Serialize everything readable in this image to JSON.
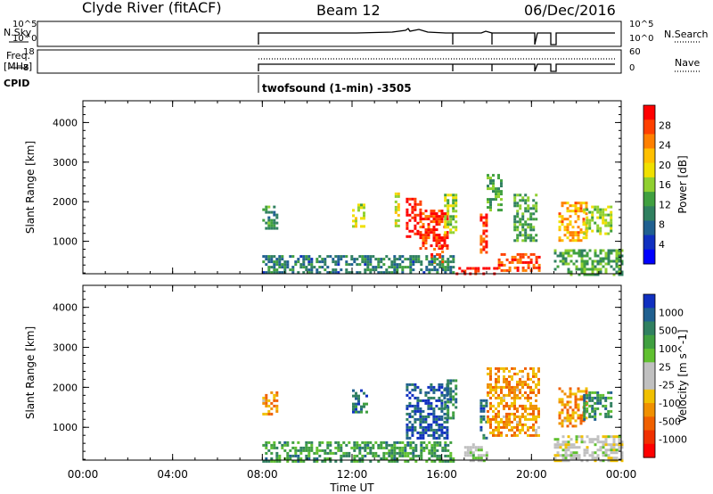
{
  "header": {
    "station": "Clyde River (fitACF)",
    "beam": "Beam 12",
    "date": "06/Dec/2016"
  },
  "top_panels": {
    "left_labels": {
      "nsky": "N.Sky",
      "freq": "Freq.",
      "freq_unit": "[MHz]",
      "cpid": "CPID"
    },
    "right_labels": {
      "nsearch": "N.Search",
      "nave": "Nave"
    },
    "nsky_ticks": [
      "10^5",
      "10^0"
    ],
    "nsearch_ticks": [
      "10^5",
      "10^0"
    ],
    "freq_ticks": [
      "18",
      "8"
    ],
    "nave_ticks": [
      "60",
      "0"
    ],
    "cpid_text": "twofsound (1-min) -3505"
  },
  "chart_data": [
    {
      "type": "heatmap",
      "title": "",
      "xlabel": "Time UT",
      "ylabel": "Slant Range [km]",
      "x_ticks": [
        "00:00",
        "04:00",
        "08:00",
        "12:00",
        "16:00",
        "20:00",
        "00:00"
      ],
      "x_range_hours": [
        0,
        24
      ],
      "y_ticks": [
        1000,
        2000,
        3000,
        4000
      ],
      "y_range_km": [
        180,
        4550
      ],
      "colorbar_label": "Power [dB]",
      "colorbar_ticks": [
        "28",
        "24",
        "20",
        "16",
        "12",
        "8",
        "4"
      ],
      "colorbar_colors": [
        "#ff0000",
        "#ff4000",
        "#ff8000",
        "#ffc000",
        "#f0e000",
        "#90d030",
        "#40a040",
        "#308060",
        "#206090",
        "#1030c0",
        "#0000ff"
      ],
      "regions": [
        {
          "t": [
            8.0,
            8.6
          ],
          "r": [
            1300,
            1900
          ],
          "v": 0.35
        },
        {
          "t": [
            12.0,
            12.5
          ],
          "r": [
            1350,
            1950
          ],
          "v": 0.55
        },
        {
          "t": [
            13.9,
            14.1
          ],
          "r": [
            1400,
            2300
          ],
          "v": 0.6
        },
        {
          "t": [
            14.4,
            15.1
          ],
          "r": [
            1100,
            2100
          ],
          "v": 0.95
        },
        {
          "t": [
            15.0,
            16.2
          ],
          "r": [
            800,
            1800
          ],
          "v": 0.9
        },
        {
          "t": [
            15.5,
            16.0
          ],
          "r": [
            450,
            900
          ],
          "v": 0.85
        },
        {
          "t": [
            16.1,
            16.6
          ],
          "r": [
            1200,
            2200
          ],
          "v": 0.5
        },
        {
          "t": [
            17.7,
            18.0
          ],
          "r": [
            700,
            1700
          ],
          "v": 0.9
        },
        {
          "t": [
            18.0,
            18.7
          ],
          "r": [
            1800,
            2700
          ],
          "v": 0.4
        },
        {
          "t": [
            18.5,
            20.3
          ],
          "r": [
            250,
            700
          ],
          "v": 0.85
        },
        {
          "t": [
            19.2,
            20.2
          ],
          "r": [
            1000,
            2200
          ],
          "v": 0.4
        },
        {
          "t": [
            16.5,
            18.5
          ],
          "r": [
            180,
            350
          ],
          "v": 0.95
        },
        {
          "t": [
            8.0,
            16.5
          ],
          "r": [
            180,
            650
          ],
          "v": 0.3
        },
        {
          "t": [
            21.2,
            22.5
          ],
          "r": [
            1000,
            2000
          ],
          "v": 0.7
        },
        {
          "t": [
            22.3,
            23.5
          ],
          "r": [
            1200,
            1900
          ],
          "v": 0.5
        },
        {
          "t": [
            21.0,
            24.0
          ],
          "r": [
            180,
            800
          ],
          "v": 0.4
        }
      ]
    },
    {
      "type": "heatmap",
      "title": "",
      "xlabel": "Time UT",
      "ylabel": "Slant Range [km]",
      "x_ticks": [
        "00:00",
        "04:00",
        "08:00",
        "12:00",
        "16:00",
        "20:00",
        "00:00"
      ],
      "x_range_hours": [
        0,
        24
      ],
      "y_ticks": [
        1000,
        2000,
        3000,
        4000
      ],
      "y_range_km": [
        180,
        4550
      ],
      "colorbar_label": "Velocity [m s^-1]",
      "colorbar_ticks": [
        "1000",
        "500",
        "100",
        "25",
        "-25",
        "-100",
        "-500",
        "-1000"
      ],
      "colorbar_colors": [
        "#1030c0",
        "#206090",
        "#308060",
        "#40a040",
        "#60c030",
        "#c0c0c0",
        "#c0c0c0",
        "#f0c000",
        "#f09000",
        "#f06000",
        "#f03000",
        "#ff0000"
      ],
      "regions": [
        {
          "t": [
            8.0,
            8.6
          ],
          "r": [
            1300,
            1900
          ],
          "v": 0.3
        },
        {
          "t": [
            12.0,
            12.6
          ],
          "r": [
            1350,
            1950
          ],
          "v": 0.85
        },
        {
          "t": [
            14.4,
            16.2
          ],
          "r": [
            700,
            2100
          ],
          "v": 0.88
        },
        {
          "t": [
            16.1,
            16.6
          ],
          "r": [
            1200,
            2200
          ],
          "v": 0.8
        },
        {
          "t": [
            17.7,
            18.0
          ],
          "r": [
            700,
            1700
          ],
          "v": 0.85
        },
        {
          "t": [
            18.0,
            20.3
          ],
          "r": [
            800,
            2500
          ],
          "v": 0.3
        },
        {
          "t": [
            17.0,
            18.0
          ],
          "r": [
            180,
            600
          ],
          "v": 0.55
        },
        {
          "t": [
            8.0,
            16.5
          ],
          "r": [
            180,
            650
          ],
          "v": 0.72
        },
        {
          "t": [
            21.2,
            22.5
          ],
          "r": [
            1000,
            2000
          ],
          "v": 0.3
        },
        {
          "t": [
            22.3,
            23.5
          ],
          "r": [
            1200,
            1900
          ],
          "v": 0.75
        },
        {
          "t": [
            21.0,
            24.0
          ],
          "r": [
            180,
            800
          ],
          "v": 0.5
        }
      ]
    }
  ]
}
